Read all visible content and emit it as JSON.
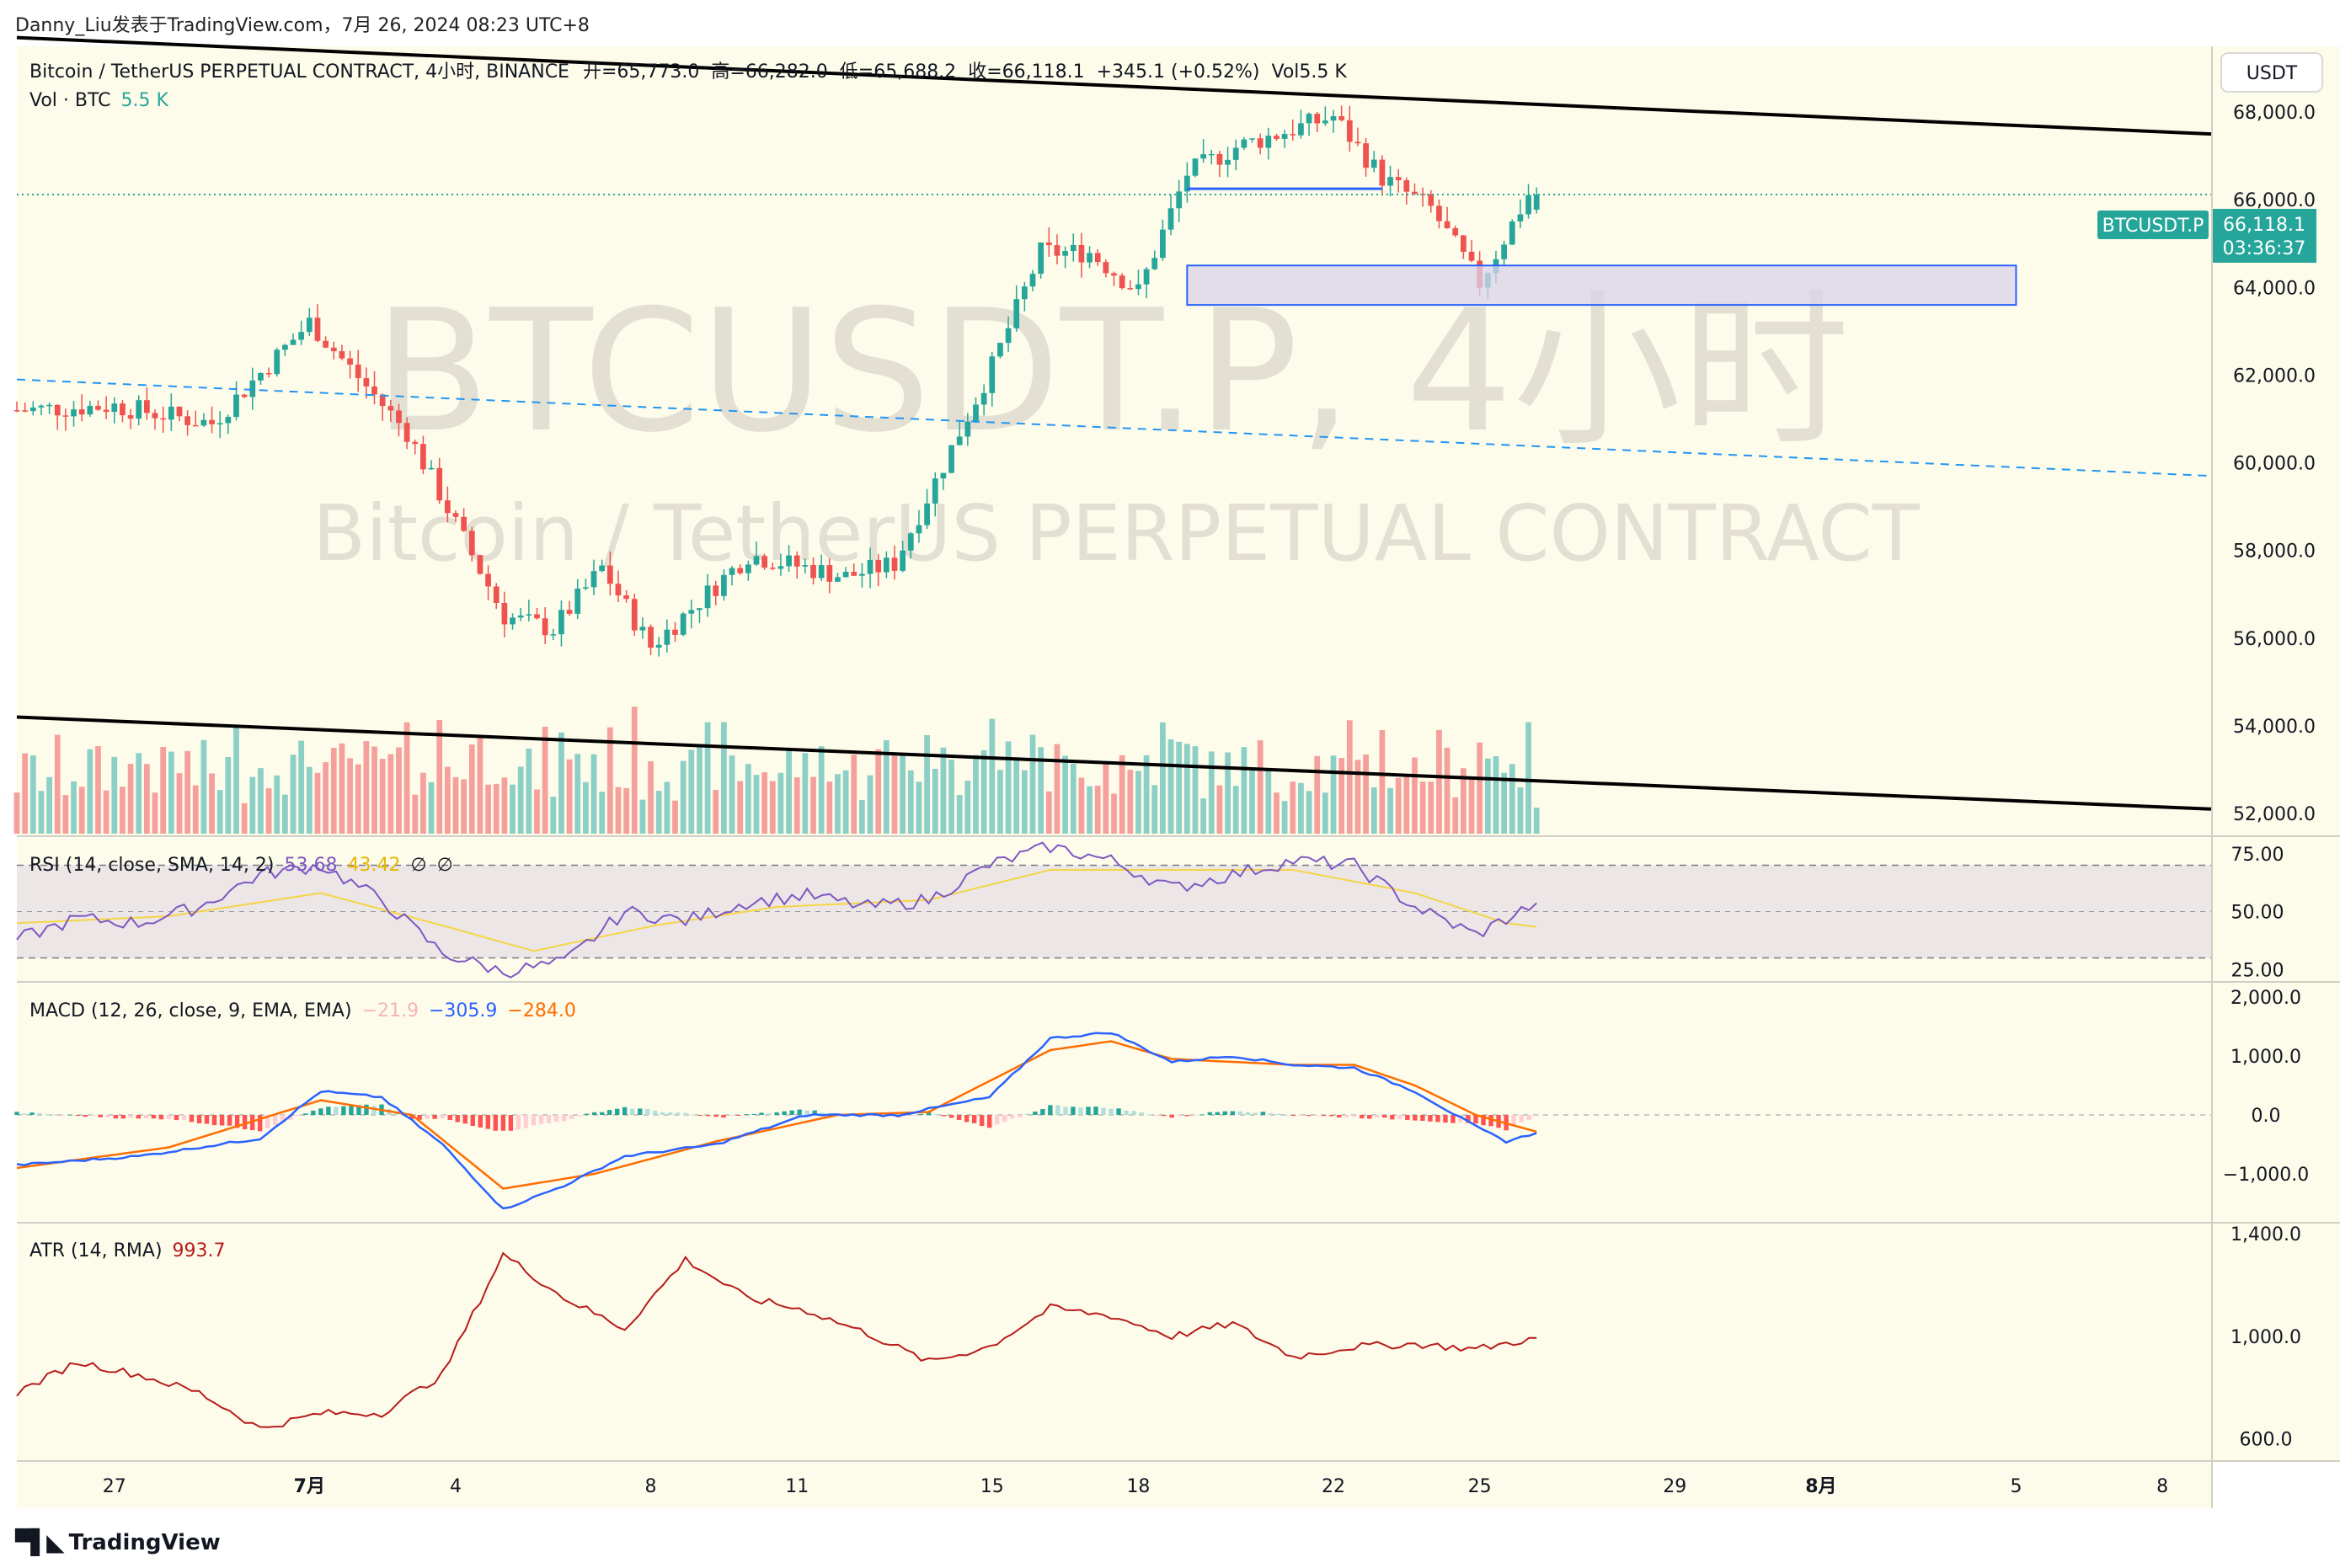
{
  "header": {
    "attribution": "Danny_Liu发表于TradingView.com，7月 26, 2024 08:23 UTC+8"
  },
  "main_pane": {
    "symbol_line": "Bitcoin / TetherUS PERPETUAL CONTRACT, 4小时, BINANCE",
    "ohlc": {
      "open_label": "开=65,773.0",
      "high_label": "高=66,282.0",
      "low_label": "低=65,688.2",
      "close_label": "收=66,118.1",
      "change": "+345.1 (+0.52%)",
      "vol_label": "Vol5.5 K"
    },
    "vol_line": {
      "label": "Vol · BTC",
      "value": "5.5 K"
    },
    "currency_button": "USDT",
    "watermark_big": "BTCUSDT.P, 4小时",
    "watermark_small": "Bitcoin / TetherUS PERPETUAL CONTRACT",
    "price_tag": {
      "symbol": "BTCUSDT.P",
      "price": "66,118.1",
      "countdown": "03:36:37"
    },
    "y_ticks": [
      "68,000.0",
      "66,000.0",
      "64,000.0",
      "62,000.0",
      "60,000.0",
      "58,000.0",
      "56,000.0",
      "54,000.0",
      "52,000.0"
    ]
  },
  "rsi_pane": {
    "label": "RSI (14, close, SMA, 14, 2)",
    "rsi_value": "53.68",
    "sma_value": "43.42",
    "extra1": "∅",
    "extra2": "∅",
    "y_ticks": [
      "75.00",
      "50.00",
      "25.00"
    ]
  },
  "macd_pane": {
    "label": "MACD (12, 26, close, 9, EMA, EMA)",
    "hist_value": "−21.9",
    "macd_value": "−305.9",
    "signal_value": "−284.0",
    "y_ticks": [
      "2,000.0",
      "1,000.0",
      "0.0",
      "−1,000.0"
    ]
  },
  "atr_pane": {
    "label": "ATR (14, RMA)",
    "value": "993.7",
    "y_ticks": [
      "1,400.0",
      "1,000.0",
      "600.0"
    ]
  },
  "x_axis": {
    "labels": [
      "27",
      "7月",
      "4",
      "8",
      "11",
      "15",
      "18",
      "22",
      "25",
      "29",
      "8月",
      "5",
      "8"
    ]
  },
  "footer": {
    "brand": "TradingView"
  },
  "colors": {
    "background": "#fdfbea",
    "up": "#26a69a",
    "down": "#ef5350",
    "up_vol": "#8ccfc6",
    "down_vol": "#f5a09c",
    "rsi": "#7e57c2",
    "rsi_sma": "#f5d547",
    "macd": "#2962ff",
    "signal": "#ff6d00",
    "atr": "#b71c1c",
    "trendline": "#000000",
    "dashed_line": "#2196f3"
  },
  "chart_data": [
    {
      "type": "candlestick",
      "title": "Bitcoin / TetherUS PERPETUAL CONTRACT, 4小时, BINANCE",
      "ylim": [
        51500,
        69500
      ],
      "x_dates": [
        "2024-06-25",
        "2024-08-09"
      ],
      "approx_close_path": [
        {
          "date": "2024-06-25",
          "close": 61200
        },
        {
          "date": "2024-06-27",
          "close": 61300
        },
        {
          "date": "2024-06-29",
          "close": 60900
        },
        {
          "date": "2024-07-01",
          "close": 63200
        },
        {
          "date": "2024-07-03",
          "close": 60700
        },
        {
          "date": "2024-07-05",
          "close": 56500
        },
        {
          "date": "2024-07-06",
          "close": 56200
        },
        {
          "date": "2024-07-07",
          "close": 57600
        },
        {
          "date": "2024-07-08",
          "close": 55800
        },
        {
          "date": "2024-07-10",
          "close": 57900
        },
        {
          "date": "2024-07-12",
          "close": 57400
        },
        {
          "date": "2024-07-13",
          "close": 57700
        },
        {
          "date": "2024-07-15",
          "close": 62200
        },
        {
          "date": "2024-07-16",
          "close": 64800
        },
        {
          "date": "2024-07-17",
          "close": 64800
        },
        {
          "date": "2024-07-18",
          "close": 63900
        },
        {
          "date": "2024-07-19",
          "close": 66600
        },
        {
          "date": "2024-07-20",
          "close": 67200
        },
        {
          "date": "2024-07-22",
          "close": 67900
        },
        {
          "date": "2024-07-23",
          "close": 66500
        },
        {
          "date": "2024-07-24",
          "close": 65800
        },
        {
          "date": "2024-07-25",
          "close": 64100
        },
        {
          "date": "2024-07-26",
          "close": 66118.1
        }
      ],
      "last": {
        "open": 65773.0,
        "high": 66282.0,
        "low": 65688.2,
        "close": 66118.1,
        "volume": "5.5K"
      },
      "annotations": {
        "upper_trendline": {
          "from": {
            "date": "2024-06-25",
            "price": 69700
          },
          "to": {
            "date": "2024-08-09",
            "price": 67500
          }
        },
        "lower_trendline": {
          "from": {
            "date": "2024-06-25",
            "price": 54200
          },
          "to": {
            "date": "2024-08-09",
            "price": 52100
          }
        },
        "dashed_line": {
          "from": {
            "date": "2024-06-25",
            "price": 61900
          },
          "to": {
            "date": "2024-08-09",
            "price": 59700
          }
        },
        "zone": {
          "from": "2024-07-19",
          "to": "2024-08-05",
          "low": 63600,
          "high": 64500
        },
        "horizontal_level": {
          "price": 66250,
          "from": "2024-07-19",
          "to": "2024-07-23"
        }
      }
    },
    {
      "type": "line",
      "title": "RSI (14, close, SMA, 14, 2)",
      "ylim": [
        20,
        80
      ],
      "bands": [
        70,
        50,
        30
      ],
      "series": [
        {
          "name": "RSI",
          "values": [
            [
              0,
              38
            ],
            [
              8,
              47
            ],
            [
              16,
              45
            ],
            [
              24,
              52
            ],
            [
              32,
              66
            ],
            [
              40,
              70
            ],
            [
              48,
              55
            ],
            [
              56,
              32
            ],
            [
              64,
              24
            ],
            [
              72,
              28
            ],
            [
              80,
              50
            ],
            [
              88,
              46
            ],
            [
              96,
              54
            ],
            [
              104,
              57
            ],
            [
              112,
              52
            ],
            [
              120,
              55
            ],
            [
              128,
              70
            ],
            [
              136,
              78
            ],
            [
              144,
              72
            ],
            [
              152,
              60
            ],
            [
              160,
              66
            ],
            [
              168,
              72
            ],
            [
              176,
              70
            ],
            [
              184,
              52
            ],
            [
              192,
              40
            ],
            [
              200,
              53.68
            ]
          ]
        },
        {
          "name": "SMA",
          "values": [
            [
              0,
              45
            ],
            [
              20,
              48
            ],
            [
              40,
              58
            ],
            [
              56,
              44
            ],
            [
              68,
              33
            ],
            [
              84,
              44
            ],
            [
              100,
              52
            ],
            [
              120,
              55
            ],
            [
              136,
              68
            ],
            [
              152,
              68
            ],
            [
              168,
              68
            ],
            [
              184,
              58
            ],
            [
              196,
              45
            ],
            [
              200,
              43.42
            ]
          ]
        }
      ]
    },
    {
      "type": "line",
      "title": "MACD (12, 26, close, 9, EMA, EMA)",
      "ylim": [
        -1800,
        2200
      ],
      "series": [
        {
          "name": "MACD",
          "values": [
            [
              0,
              -850
            ],
            [
              16,
              -700
            ],
            [
              32,
              -400
            ],
            [
              40,
              400
            ],
            [
              48,
              300
            ],
            [
              56,
              -500
            ],
            [
              64,
              -1600
            ],
            [
              72,
              -1200
            ],
            [
              80,
              -700
            ],
            [
              92,
              -500
            ],
            [
              104,
              0
            ],
            [
              116,
              0
            ],
            [
              128,
              300
            ],
            [
              136,
              1300
            ],
            [
              144,
              1400
            ],
            [
              152,
              900
            ],
            [
              160,
              1000
            ],
            [
              168,
              850
            ],
            [
              176,
              800
            ],
            [
              184,
              400
            ],
            [
              192,
              -200
            ],
            [
              196,
              -450
            ],
            [
              200,
              -305.9
            ]
          ]
        },
        {
          "name": "Signal",
          "values": [
            [
              0,
              -900
            ],
            [
              20,
              -550
            ],
            [
              40,
              250
            ],
            [
              52,
              0
            ],
            [
              64,
              -1250
            ],
            [
              76,
              -1000
            ],
            [
              92,
              -450
            ],
            [
              108,
              0
            ],
            [
              120,
              50
            ],
            [
              136,
              1100
            ],
            [
              144,
              1250
            ],
            [
              152,
              950
            ],
            [
              160,
              900
            ],
            [
              168,
              850
            ],
            [
              176,
              850
            ],
            [
              184,
              500
            ],
            [
              192,
              0
            ],
            [
              200,
              -284
            ]
          ]
        },
        {
          "name": "Histogram",
          "last": -21.9
        }
      ]
    },
    {
      "type": "line",
      "title": "ATR (14, RMA)",
      "ylim": [
        520,
        1430
      ],
      "series": [
        {
          "name": "ATR",
          "values": [
            [
              0,
              780
            ],
            [
              8,
              900
            ],
            [
              16,
              850
            ],
            [
              24,
              780
            ],
            [
              32,
              640
            ],
            [
              40,
              700
            ],
            [
              48,
              700
            ],
            [
              56,
              850
            ],
            [
              64,
              1320
            ],
            [
              72,
              1150
            ],
            [
              80,
              1030
            ],
            [
              88,
              1300
            ],
            [
              96,
              1150
            ],
            [
              104,
              1100
            ],
            [
              112,
              1010
            ],
            [
              120,
              900
            ],
            [
              128,
              960
            ],
            [
              136,
              1110
            ],
            [
              144,
              1080
            ],
            [
              152,
              1000
            ],
            [
              160,
              1050
            ],
            [
              168,
              920
            ],
            [
              176,
              960
            ],
            [
              184,
              970
            ],
            [
              192,
              950
            ],
            [
              200,
              993.7
            ]
          ]
        }
      ]
    }
  ]
}
